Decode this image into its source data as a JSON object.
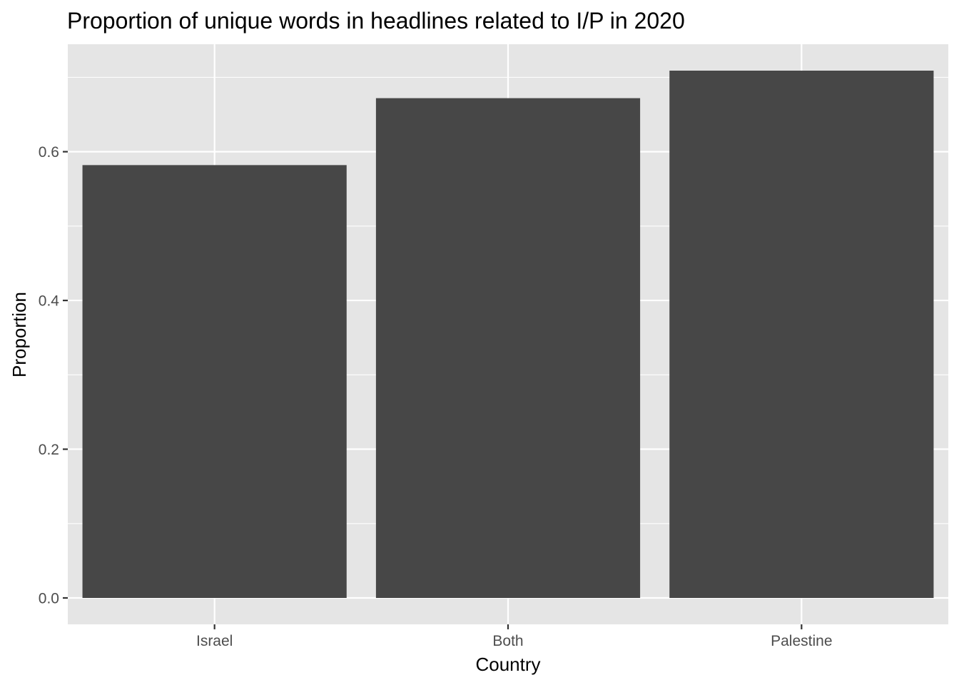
{
  "chart_data": {
    "type": "bar",
    "title": "Proportion of unique words in headlines related to I/P in 2020",
    "xlabel": "Country",
    "ylabel": "Proportion",
    "categories": [
      "Israel",
      "Both",
      "Palestine"
    ],
    "values": [
      0.582,
      0.672,
      0.709
    ],
    "ylim": [
      -0.0355,
      0.7445
    ],
    "yticks": [
      0.0,
      0.2,
      0.4,
      0.6
    ],
    "ytick_labels": [
      "0.0",
      "0.2",
      "0.4",
      "0.6"
    ],
    "grid": true,
    "legend": "none",
    "colors": {
      "panel_background": "#e5e5e5",
      "grid_line": "#ffffff",
      "bar_fill": "#474747",
      "tick_mark": "#333333",
      "tick_label": "#4d4d4d",
      "text": "#000000"
    }
  }
}
